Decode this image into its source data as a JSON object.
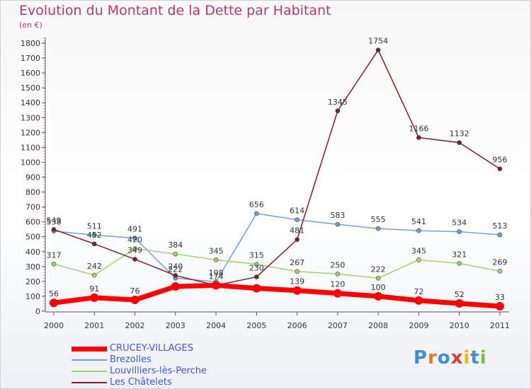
{
  "title": "Evolution du Montant de la Dette par Habitant",
  "unit_label": "(en €)",
  "logo_text": "Proxiti",
  "colors": {
    "title": "#b13a68",
    "grid_tick": "#cc3355",
    "axis": "#555555",
    "legend_text": "#3a5bd0"
  },
  "chart_data": {
    "type": "line",
    "title": "Evolution du Montant de la Dette par Habitant",
    "ylabel": "(en €)",
    "xlabel": "",
    "x": [
      "2000",
      "2001",
      "2002",
      "2003",
      "2004",
      "2005",
      "2006",
      "2007",
      "2008",
      "2009",
      "2010",
      "2011"
    ],
    "ylim": [
      0,
      1800
    ],
    "yticks": [
      0,
      100,
      200,
      300,
      400,
      500,
      600,
      700,
      800,
      900,
      1000,
      1100,
      1200,
      1300,
      1400,
      1500,
      1600,
      1700,
      1800
    ],
    "legend_position": "bottom-left",
    "series": [
      {
        "name": "CRUCEY-VILLAGES",
        "color": "#ff0000",
        "width": 7,
        "values": [
          56,
          91,
          76,
          166,
          174,
          154,
          139,
          120,
          100,
          72,
          52,
          33
        ],
        "labels": [
          "56",
          "91",
          "76",
          "",
          "",
          "",
          "139",
          "120",
          "100",
          "72",
          "52",
          "33"
        ]
      },
      {
        "name": "Brezolles",
        "color": "#6fa1d6",
        "width": 1.5,
        "values": [
          538,
          511,
          491,
          222,
          198,
          656,
          614,
          583,
          555,
          541,
          534,
          513
        ],
        "labels": [
          "538",
          "511",
          "491",
          "222",
          "198",
          "656",
          "614",
          "583",
          "555",
          "541",
          "534",
          "513"
        ]
      },
      {
        "name": "Louvilliers-lès-Perche",
        "color": "#9ad66f",
        "width": 1.5,
        "values": [
          317,
          242,
          420,
          384,
          345,
          315,
          267,
          250,
          222,
          345,
          321,
          269
        ],
        "labels": [
          "317",
          "242",
          "420",
          "384",
          "345",
          "315",
          "267",
          "250",
          "222",
          "345",
          "321",
          "269"
        ]
      },
      {
        "name": "Les Châtelets",
        "color": "#7a1f2b",
        "width": 1.5,
        "values": [
          549,
          452,
          349,
          240,
          174,
          230,
          481,
          1345,
          1754,
          1166,
          1132,
          956
        ],
        "labels": [
          "549",
          "452",
          "349",
          "240",
          "174",
          "230",
          "481",
          "1345",
          "1754",
          "1166",
          "1132",
          "956"
        ]
      }
    ]
  }
}
